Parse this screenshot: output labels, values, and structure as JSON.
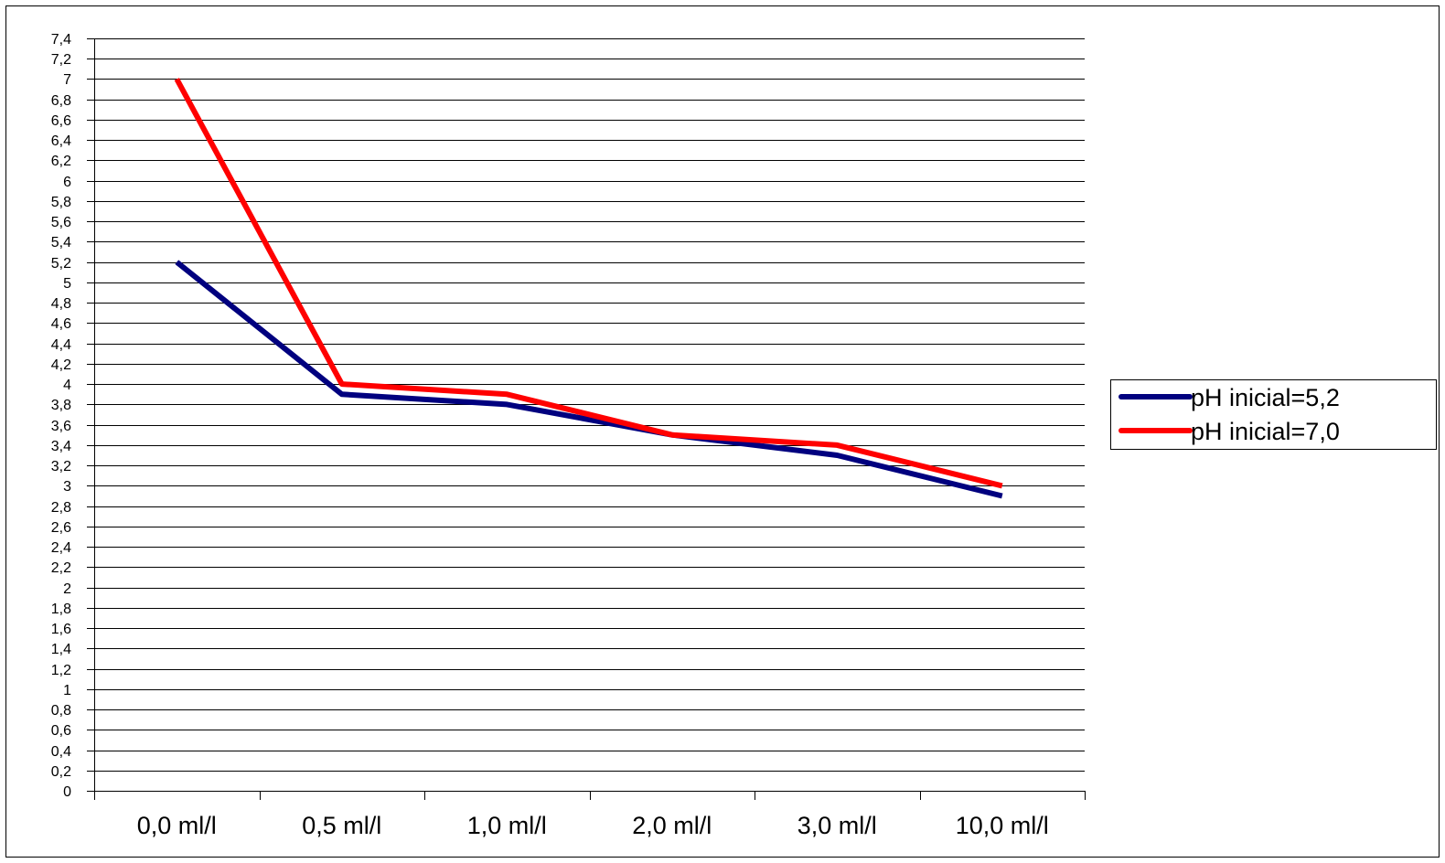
{
  "chart_data": {
    "type": "line",
    "title": "",
    "xlabel": "",
    "ylabel": "",
    "categories": [
      "0,0 ml/l",
      "0,5 ml/l",
      "1,0 ml/l",
      "2,0 ml/l",
      "3,0 ml/l",
      "10,0 ml/l"
    ],
    "series": [
      {
        "name": "pH inicial=5,2",
        "color": "#00007f",
        "values": [
          5.2,
          3.9,
          3.8,
          3.5,
          3.3,
          2.9
        ]
      },
      {
        "name": "pH inicial=7,0",
        "color": "#ff0000",
        "values": [
          7.0,
          4.0,
          3.9,
          3.5,
          3.4,
          3.0
        ]
      }
    ],
    "ylim": [
      0,
      7.4
    ],
    "ytick_step": 0.2,
    "y_ticks": [
      "0",
      "0,2",
      "0,4",
      "0,6",
      "0,8",
      "1",
      "1,2",
      "1,4",
      "1,6",
      "1,8",
      "2",
      "2,2",
      "2,4",
      "2,6",
      "2,8",
      "3",
      "3,2",
      "3,4",
      "3,6",
      "3,8",
      "4",
      "4,2",
      "4,4",
      "4,6",
      "4,8",
      "5",
      "5,2",
      "5,4",
      "5,6",
      "5,8",
      "6",
      "6,2",
      "6,4",
      "6,6",
      "6,8",
      "7",
      "7,2",
      "7,4"
    ],
    "grid": "horizontal",
    "legend": "right"
  }
}
